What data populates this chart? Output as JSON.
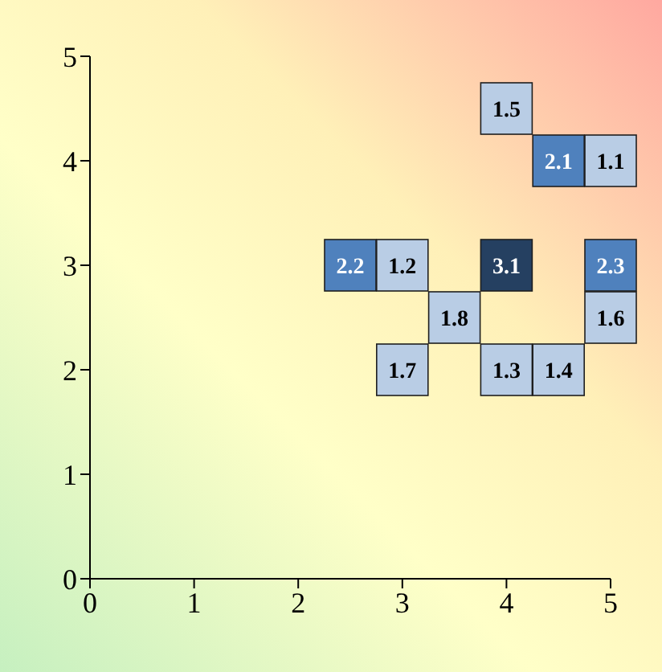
{
  "chart_data": {
    "type": "scatter",
    "marker": "square",
    "xlim": [
      0,
      5
    ],
    "ylim": [
      0,
      5
    ],
    "xticks": [
      0,
      1,
      2,
      3,
      4,
      5
    ],
    "yticks": [
      0,
      1,
      2,
      3,
      4,
      5
    ],
    "grid": false,
    "legend": false,
    "x": [
      4,
      4.5,
      5,
      2.5,
      3,
      4,
      5,
      3.5,
      5,
      3,
      4,
      4.5
    ],
    "values": [
      4.5,
      4,
      4,
      3,
      3,
      3,
      3,
      2.5,
      2.5,
      2,
      2,
      2
    ],
    "annotations": [
      {
        "text": "1.5",
        "x": 4,
        "y": 4.5
      },
      {
        "text": "2.1",
        "x": 4.5,
        "y": 4
      },
      {
        "text": "1.1",
        "x": 5,
        "y": 4
      },
      {
        "text": "2.2",
        "x": 2.5,
        "y": 3
      },
      {
        "text": "1.2",
        "x": 3,
        "y": 3
      },
      {
        "text": "3.1",
        "x": 4,
        "y": 3
      },
      {
        "text": "2.3",
        "x": 5,
        "y": 3
      },
      {
        "text": "1.8",
        "x": 3.5,
        "y": 2.5
      },
      {
        "text": "1.6",
        "x": 5,
        "y": 2.5
      },
      {
        "text": "1.7",
        "x": 3,
        "y": 2
      },
      {
        "text": "1.3",
        "x": 4,
        "y": 2
      },
      {
        "text": "1.4",
        "x": 4.5,
        "y": 2
      }
    ],
    "colors": [
      "#b9cde5",
      "#4f81bd",
      "#b9cde5",
      "#4f81bd",
      "#b9cde5",
      "#254061",
      "#4f81bd",
      "#b9cde5",
      "#b9cde5",
      "#b9cde5",
      "#b9cde5",
      "#b9cde5"
    ]
  }
}
